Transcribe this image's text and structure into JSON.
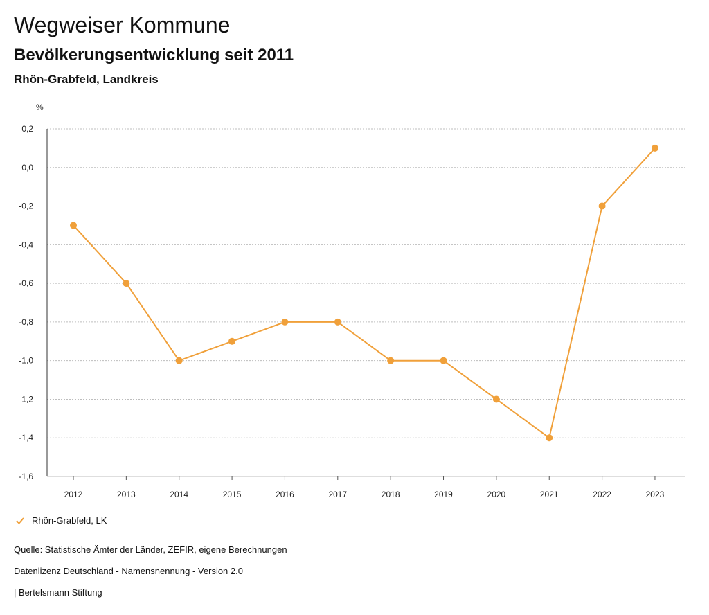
{
  "header": {
    "title": "Wegweiser Kommune",
    "subtitle": "Bevölkerungsentwicklung seit 2011",
    "region": "Rhön-Grabfeld, Landkreis"
  },
  "chart_data": {
    "type": "line",
    "ylabel": "%",
    "ylim": [
      -1.6,
      0.2
    ],
    "yticks": [
      "0,2",
      "0,0",
      "-0,2",
      "-0,4",
      "-0,6",
      "-0,8",
      "-1,0",
      "-1,2",
      "-1,4",
      "-1,6"
    ],
    "ytick_values": [
      0.2,
      0.0,
      -0.2,
      -0.4,
      -0.6,
      -0.8,
      -1.0,
      -1.2,
      -1.4,
      -1.6
    ],
    "categories": [
      "2012",
      "2013",
      "2014",
      "2015",
      "2016",
      "2017",
      "2018",
      "2019",
      "2020",
      "2021",
      "2022",
      "2023"
    ],
    "series": [
      {
        "name": "Rhön-Grabfeld, LK",
        "color": "#f0a03a",
        "values": [
          -0.3,
          -0.6,
          -1.0,
          -0.9,
          -0.8,
          -0.8,
          -1.0,
          -1.0,
          -1.2,
          -1.4,
          -0.2,
          0.1
        ]
      }
    ],
    "grid": "horizontal-dotted",
    "legend": "bottom-left"
  },
  "legend": {
    "icon": "check-icon",
    "label": "Rhön-Grabfeld, LK"
  },
  "footer": {
    "source": "Quelle: Statistische Ämter der Länder, ZEFIR, eigene Berechnungen",
    "license": "Datenlizenz Deutschland - Namensnennung - Version 2.0",
    "publisher": "| Bertelsmann Stiftung"
  }
}
